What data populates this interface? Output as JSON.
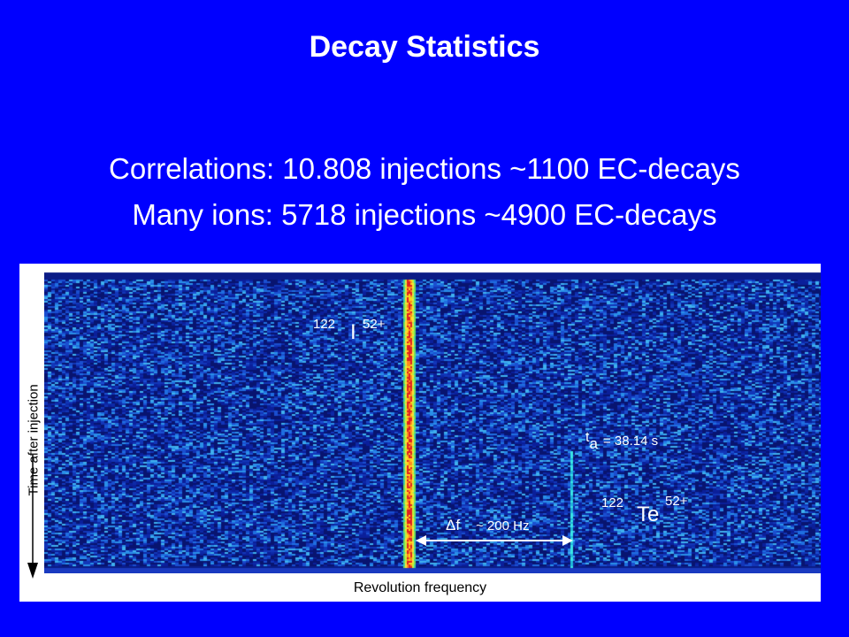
{
  "title": "Decay Statistics",
  "line1": "Correlations: 10.808 injections ~1100 EC-decays",
  "line2": "Many ions: 5718 injections ~4900 EC-decays",
  "figure": {
    "y_axis_label": "Time after injection",
    "x_axis_label": "Revolution frequency",
    "parent_mass": "122",
    "parent_symbol": "I",
    "parent_charge": "52+",
    "daughter_mass": "122",
    "daughter_symbol": "Te",
    "daughter_charge": "52+",
    "ta_label": "t",
    "ta_sub": "a",
    "ta_value": "= 38.14 s",
    "delta_symbol": "Δ",
    "delta_f": "f",
    "delta_value": "~ 200 Hz"
  },
  "colors": {
    "background": "#0000ff",
    "text": "#ffffff",
    "spectrogram_base": "#0a1f8f"
  }
}
